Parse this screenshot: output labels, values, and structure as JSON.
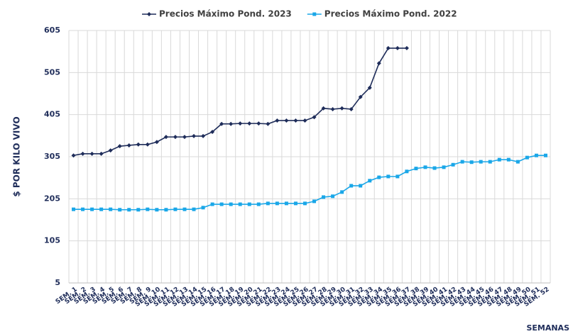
{
  "chart_data": {
    "type": "line",
    "y_label": "$ POR KILO VIVO",
    "x_label": "SEMANAS",
    "categories": [
      "SEM. 1",
      "SEM. 2",
      "SEM. 3",
      "SEM. 4",
      "SEM. 5",
      "SEM. 6",
      "SEM. 7",
      "SEM. 8",
      "SEM. 9",
      "SEM. 10",
      "SEM. 11",
      "SEM. 12",
      "SEM. 13",
      "SEM. 14",
      "SEM. 15",
      "SEM. 16",
      "SEM. 17",
      "SEM. 18",
      "SEM. 19",
      "SEM. 20",
      "SEM. 21",
      "SEM. 22",
      "SEM. 23",
      "SEM. 24",
      "SEM. 25",
      "SEM. 26",
      "SEM. 27",
      "SEM. 28",
      "SEM. 29",
      "SEM. 30",
      "SEM. 31",
      "SEM. 32",
      "SEM. 33",
      "SEM. 34",
      "SEM. 35",
      "SEM. 36",
      "SEM. 37",
      "SEM. 38",
      "SEM. 39",
      "SEM. 40",
      "SEM. 41",
      "SEM. 42",
      "SEM. 43",
      "SEM. 44",
      "SEM. 45",
      "SEM. 46",
      "SEM. 47",
      "SEM. 48",
      "SEM. 49",
      "SEM. 50",
      "SEM. 51",
      "SEM. 52"
    ],
    "series": [
      {
        "name": "Precios Máximo Pond. 2023",
        "color": "#1f2d5a",
        "marker": "diamond",
        "values": [
          308,
          312,
          312,
          312,
          320,
          330,
          332,
          334,
          334,
          340,
          352,
          352,
          352,
          354,
          354,
          364,
          383,
          383,
          384,
          384,
          384,
          383,
          391,
          391,
          391,
          391,
          399,
          420,
          418,
          420,
          418,
          447,
          469,
          527,
          563,
          563,
          563,
          null,
          null,
          null,
          null,
          null,
          null,
          null,
          null,
          null,
          null,
          null,
          null,
          null,
          null,
          null
        ]
      },
      {
        "name": "Precios Máximo Pond. 2022",
        "color": "#1aa7e8",
        "marker": "square",
        "values": [
          180,
          180,
          180,
          180,
          180,
          179,
          179,
          179,
          180,
          179,
          179,
          180,
          180,
          180,
          184,
          192,
          192,
          192,
          192,
          192,
          192,
          194,
          194,
          194,
          194,
          194,
          199,
          209,
          211,
          221,
          236,
          236,
          248,
          256,
          258,
          258,
          270,
          277,
          280,
          278,
          280,
          286,
          293,
          292,
          293,
          293,
          298,
          298,
          293,
          303,
          308,
          308
        ]
      }
    ],
    "ylim": [
      5,
      605
    ],
    "yticks": [
      5,
      105,
      205,
      305,
      405,
      505,
      605
    ],
    "grid": true,
    "legend": "top"
  }
}
